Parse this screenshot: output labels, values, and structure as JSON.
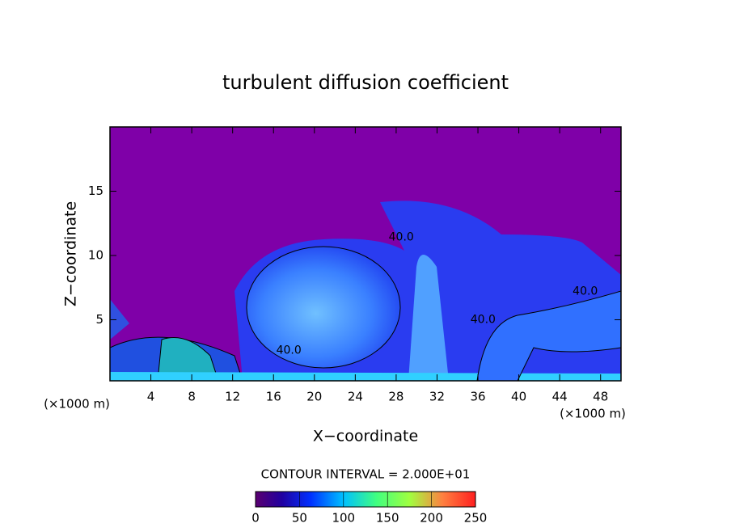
{
  "chart_data": {
    "type": "contour",
    "title": "turbulent diffusion coefficient",
    "x_label": "X−coordinate",
    "y_label": "Z−coordinate",
    "x_unit_left": "(×1000 m)",
    "x_unit_right": "(×1000 m)",
    "xlim": [
      0,
      50
    ],
    "ylim": [
      0.25,
      20
    ],
    "xticks": [
      4,
      8,
      12,
      16,
      20,
      24,
      28,
      32,
      36,
      40,
      44,
      48
    ],
    "yticks": [
      5,
      10,
      15
    ],
    "contour_interval_text": "CONTOUR INTERVAL = 2.000E+01",
    "contour_labels": [
      {
        "text": "40.0",
        "x": 28.5,
        "y": 11.4
      },
      {
        "text": "40.0",
        "x": 17.5,
        "y": 2.6
      },
      {
        "text": "40.0",
        "x": 36.5,
        "y": 5.0
      },
      {
        "text": "40.0",
        "x": 46.5,
        "y": 7.2
      }
    ],
    "colorbar": {
      "lim": [
        0,
        250
      ],
      "ticks": [
        0,
        50,
        100,
        150,
        200,
        250
      ]
    }
  }
}
